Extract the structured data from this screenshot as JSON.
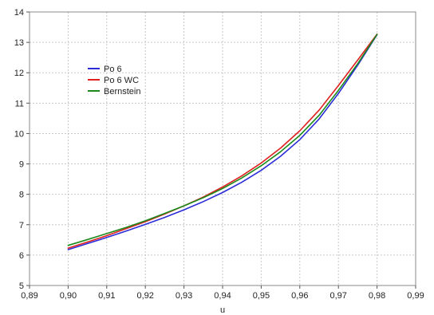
{
  "chart_data": {
    "type": "line",
    "title": "",
    "xlabel": "u",
    "ylabel": "",
    "xlim": [
      0.89,
      0.99
    ],
    "ylim": [
      5,
      14
    ],
    "xticks": [
      0.89,
      0.9,
      0.91,
      0.92,
      0.93,
      0.94,
      0.95,
      0.96,
      0.97,
      0.98,
      0.99
    ],
    "xtick_labels": [
      "0,89",
      "0,90",
      "0,91",
      "0,92",
      "0,93",
      "0,94",
      "0,95",
      "0,96",
      "0,97",
      "0,98",
      "0,99"
    ],
    "yticks": [
      5,
      6,
      7,
      8,
      9,
      10,
      11,
      12,
      13,
      14
    ],
    "ytick_labels": [
      "5",
      "6",
      "7",
      "8",
      "9",
      "10",
      "11",
      "12",
      "13",
      "14"
    ],
    "grid": true,
    "legend_position": "upper-left",
    "x": [
      0.9,
      0.905,
      0.91,
      0.915,
      0.92,
      0.925,
      0.93,
      0.935,
      0.94,
      0.945,
      0.95,
      0.955,
      0.96,
      0.965,
      0.97,
      0.975,
      0.98
    ],
    "series": [
      {
        "name": "Po 6",
        "color": "#2b2bd8",
        "values": [
          6.18,
          6.38,
          6.58,
          6.79,
          7.01,
          7.24,
          7.49,
          7.76,
          8.06,
          8.4,
          8.79,
          9.25,
          9.8,
          10.48,
          11.32,
          12.25,
          13.25
        ]
      },
      {
        "name": "Po 6 WC",
        "color": "#e02020",
        "values": [
          6.23,
          6.43,
          6.64,
          6.87,
          7.1,
          7.35,
          7.62,
          7.91,
          8.24,
          8.61,
          9.03,
          9.52,
          10.09,
          10.77,
          11.58,
          12.42,
          13.27
        ]
      },
      {
        "name": "Bernstein",
        "color": "#1a8a1a",
        "values": [
          6.32,
          6.51,
          6.71,
          6.91,
          7.13,
          7.37,
          7.62,
          7.89,
          8.19,
          8.54,
          8.94,
          9.4,
          9.94,
          10.6,
          11.42,
          12.3,
          13.26
        ]
      }
    ]
  }
}
